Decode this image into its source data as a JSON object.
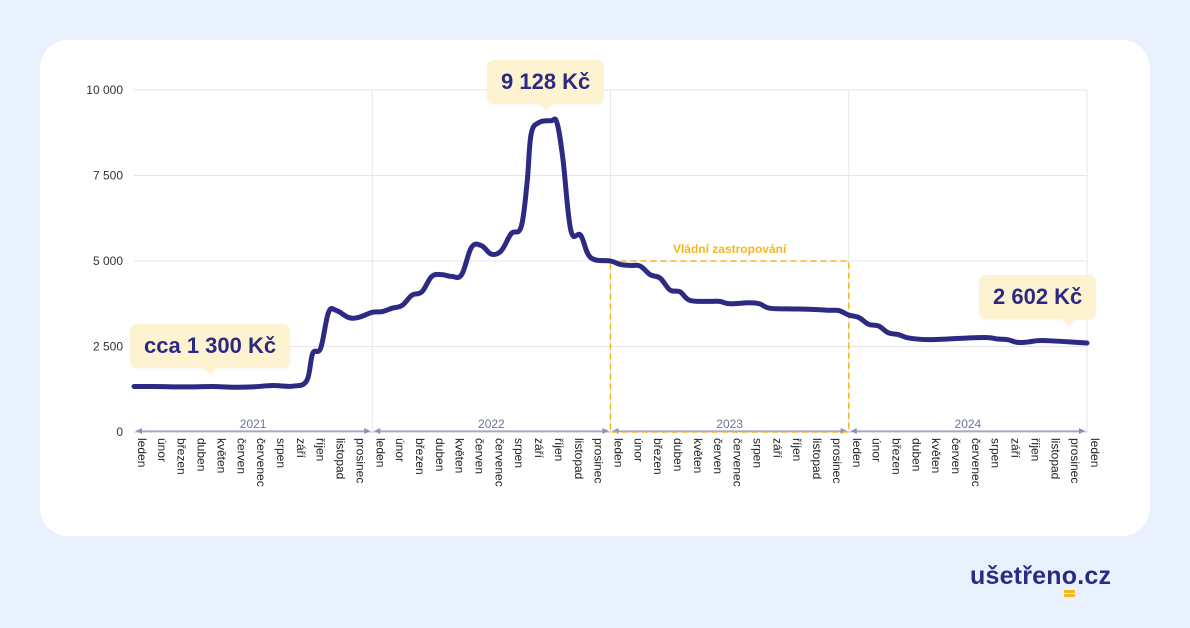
{
  "chart_data": {
    "type": "line",
    "ylim": [
      0,
      10000
    ],
    "y_ticks": [
      "10 000",
      "7 500",
      "5 000",
      "2 500",
      "0"
    ],
    "y_tick_values": [
      10000,
      7500,
      5000,
      2500,
      0
    ],
    "x_month_labels": [
      "leden",
      "únor",
      "březen",
      "duben",
      "květen",
      "červen",
      "červenec",
      "srpen",
      "září",
      "říjen",
      "listopad",
      "prosinec",
      "leden",
      "únor",
      "březen",
      "duben",
      "květen",
      "červen",
      "červenec",
      "srpen",
      "září",
      "říjen",
      "listopad",
      "prosinec",
      "leden",
      "únor",
      "březen",
      "duben",
      "květen",
      "červen",
      "červenec",
      "srpen",
      "září",
      "říjen",
      "listopad",
      "prosinec",
      "leden",
      "únor",
      "březen",
      "duben",
      "květen",
      "červen",
      "červenec",
      "srpen",
      "září",
      "říjen",
      "listopad",
      "prosinec",
      "leden"
    ],
    "years": [
      {
        "label": "2021",
        "start": 0,
        "end": 12
      },
      {
        "label": "2022",
        "start": 12,
        "end": 24
      },
      {
        "label": "2023",
        "start": 24,
        "end": 36
      },
      {
        "label": "2024",
        "start": 36,
        "end": 48
      }
    ],
    "grid": true,
    "series": [
      {
        "color": "#2d2a83",
        "points": [
          [
            0,
            1330
          ],
          [
            1,
            1330
          ],
          [
            2,
            1320
          ],
          [
            3,
            1320
          ],
          [
            4,
            1330
          ],
          [
            5,
            1310
          ],
          [
            6,
            1320
          ],
          [
            7,
            1360
          ],
          [
            8,
            1340
          ],
          [
            8.7,
            1500
          ],
          [
            9,
            2300
          ],
          [
            9.4,
            2450
          ],
          [
            9.8,
            3500
          ],
          [
            10.2,
            3550
          ],
          [
            10.8,
            3350
          ],
          [
            11.3,
            3350
          ],
          [
            12,
            3500
          ],
          [
            12.5,
            3520
          ],
          [
            13,
            3620
          ],
          [
            13.5,
            3700
          ],
          [
            14,
            4000
          ],
          [
            14.5,
            4100
          ],
          [
            15,
            4550
          ],
          [
            15.5,
            4600
          ],
          [
            16,
            4550
          ],
          [
            16.5,
            4600
          ],
          [
            17,
            5400
          ],
          [
            17.5,
            5450
          ],
          [
            18,
            5200
          ],
          [
            18.5,
            5300
          ],
          [
            19,
            5800
          ],
          [
            19.5,
            6000
          ],
          [
            19.8,
            7300
          ],
          [
            20,
            8700
          ],
          [
            20.4,
            9050
          ],
          [
            21,
            9100
          ],
          [
            21.3,
            9050
          ],
          [
            21.6,
            8000
          ],
          [
            22,
            5900
          ],
          [
            22.5,
            5750
          ],
          [
            23,
            5100
          ],
          [
            24,
            5000
          ],
          [
            24.5,
            4900
          ],
          [
            25,
            4870
          ],
          [
            25.5,
            4850
          ],
          [
            26,
            4600
          ],
          [
            26.5,
            4500
          ],
          [
            27,
            4150
          ],
          [
            27.5,
            4100
          ],
          [
            28,
            3850
          ],
          [
            29,
            3820
          ],
          [
            29.5,
            3820
          ],
          [
            30,
            3750
          ],
          [
            31,
            3780
          ],
          [
            31.5,
            3750
          ],
          [
            32,
            3620
          ],
          [
            33,
            3600
          ],
          [
            34,
            3590
          ],
          [
            35,
            3560
          ],
          [
            35.5,
            3550
          ],
          [
            36,
            3420
          ],
          [
            36.5,
            3350
          ],
          [
            37,
            3150
          ],
          [
            37.5,
            3100
          ],
          [
            38,
            2900
          ],
          [
            38.5,
            2850
          ],
          [
            39,
            2750
          ],
          [
            40,
            2700
          ],
          [
            41,
            2720
          ],
          [
            42,
            2750
          ],
          [
            43,
            2760
          ],
          [
            43.5,
            2720
          ],
          [
            44,
            2700
          ],
          [
            44.5,
            2620
          ],
          [
            45,
            2630
          ],
          [
            45.5,
            2670
          ],
          [
            46,
            2670
          ],
          [
            47,
            2640
          ],
          [
            48,
            2602
          ]
        ]
      }
    ],
    "callouts": [
      {
        "text": "cca 1 300 Kč"
      },
      {
        "text": "9 128 Kč"
      },
      {
        "text": "2 602 Kč"
      }
    ],
    "annotation": {
      "text": "Vládní zastropování",
      "from": 24,
      "to": 36,
      "value": 5000,
      "color": "#f5b820"
    }
  },
  "brand": {
    "prefix": "ušetřen",
    "o": "o",
    "suffix": ".cz"
  }
}
